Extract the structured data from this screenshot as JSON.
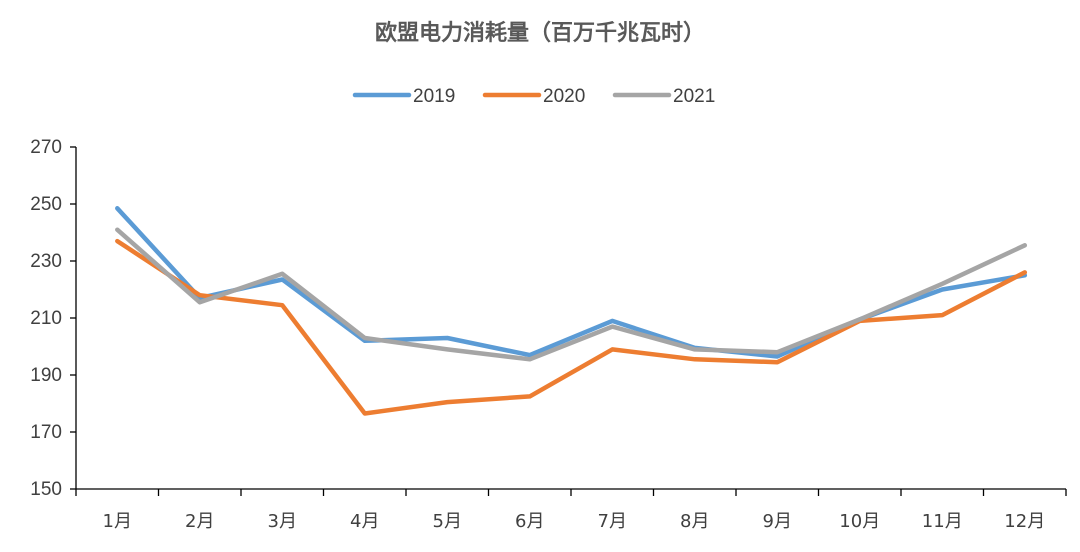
{
  "chart_data": {
    "type": "line",
    "title": "欧盟电力消耗量（百万千兆瓦时）",
    "xlabel": "",
    "ylabel": "",
    "categories": [
      "1月",
      "2月",
      "3月",
      "4月",
      "5月",
      "6月",
      "7月",
      "8月",
      "9月",
      "10月",
      "11月",
      "12月"
    ],
    "ylim": [
      150,
      270
    ],
    "yticks": [
      "150",
      "170",
      "190",
      "210",
      "230",
      "250",
      "270"
    ],
    "grid": false,
    "legend_position": "top",
    "series": [
      {
        "name": "2019",
        "color": "#5B9BD5",
        "values": [
          248.5,
          217,
          223.5,
          202,
          203,
          197,
          209,
          199.5,
          196.5,
          209.5,
          220,
          225
        ]
      },
      {
        "name": "2020",
        "color": "#ED7D31",
        "values": [
          237,
          218,
          214.5,
          176.5,
          180.5,
          182.5,
          199,
          195.5,
          194.5,
          209,
          211,
          226
        ]
      },
      {
        "name": "2021",
        "color": "#A5A5A5",
        "values": [
          241,
          215.5,
          225.5,
          203,
          199,
          195.5,
          207,
          199,
          198,
          209.5,
          222,
          235.5
        ]
      }
    ]
  }
}
